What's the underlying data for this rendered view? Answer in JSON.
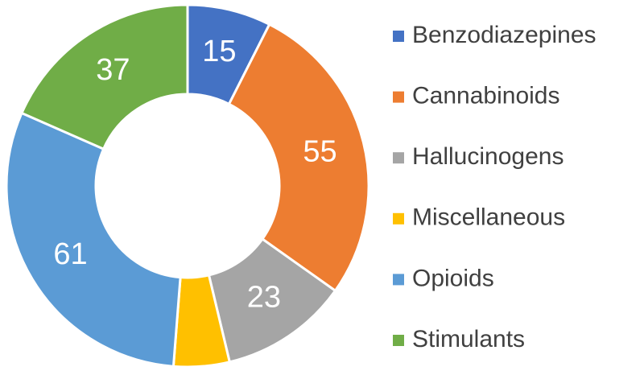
{
  "chart_data": {
    "type": "donut",
    "categories": [
      "Benzodiazepines",
      "Cannabinoids",
      "Hallucinogens",
      "Miscellaneous",
      "Opioids",
      "Stimulants"
    ],
    "values": [
      15,
      55,
      23,
      10,
      61,
      37
    ],
    "value_labels": [
      "15",
      "55",
      "23",
      null,
      "61",
      "37"
    ],
    "colors": [
      "#4472c4",
      "#ed7d31",
      "#a5a5a5",
      "#ffc000",
      "#5b9bd5",
      "#70ad47"
    ],
    "legend": "right"
  }
}
